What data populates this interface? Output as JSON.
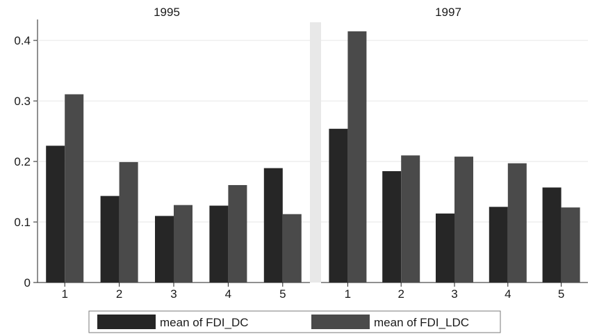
{
  "chart_data": {
    "type": "bar",
    "title": "",
    "xlabel": "",
    "ylabel": "",
    "ylim": [
      0,
      0.43
    ],
    "yticks": [
      0,
      0.1,
      0.2,
      0.3,
      0.4
    ],
    "ytick_labels": [
      "0",
      "0.1",
      "0.2",
      "0.3",
      "0.4"
    ],
    "grid": true,
    "legend_position": "bottom",
    "panels": [
      {
        "title": "1995",
        "categories": [
          "1",
          "2",
          "3",
          "4",
          "5"
        ],
        "series": [
          {
            "name": "mean of FDI_DC",
            "color": "#262626",
            "values": [
              0.226,
              0.143,
              0.11,
              0.127,
              0.189
            ]
          },
          {
            "name": "mean of FDI_LDC",
            "color": "#4a4a4a",
            "values": [
              0.311,
              0.199,
              0.128,
              0.161,
              0.113
            ]
          }
        ]
      },
      {
        "title": "1997",
        "categories": [
          "1",
          "2",
          "3",
          "4",
          "5"
        ],
        "series": [
          {
            "name": "mean of FDI_DC",
            "color": "#262626",
            "values": [
              0.254,
              0.184,
              0.114,
              0.125,
              0.157
            ]
          },
          {
            "name": "mean of FDI_LDC",
            "color": "#4a4a4a",
            "values": [
              0.415,
              0.21,
              0.208,
              0.197,
              0.124
            ]
          }
        ]
      }
    ],
    "legend": [
      {
        "label": "mean of FDI_DC",
        "color": "#262626"
      },
      {
        "label": "mean of FDI_LDC",
        "color": "#4a4a4a"
      }
    ]
  }
}
